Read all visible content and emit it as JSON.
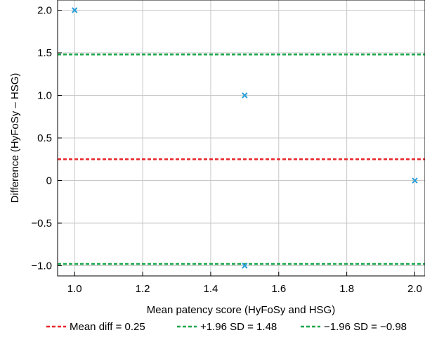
{
  "chart_data": {
    "type": "scatter",
    "xlabel": "Mean patency score (HyFoSy and HSG)",
    "ylabel": "Difference (HyFoSy – HSG)",
    "xlim": [
      0.95,
      2.03
    ],
    "ylim": [
      -1.12,
      2.12
    ],
    "x_ticks": [
      "1.0",
      "1.2",
      "1.4",
      "1.6",
      "1.8",
      "2.0"
    ],
    "y_ticks": [
      "2.0",
      "1.5",
      "1.0",
      "0.5",
      "0",
      "−0.5",
      "−1.0"
    ],
    "grid": true,
    "points": [
      {
        "x": 1.0,
        "y": 2.0
      },
      {
        "x": 1.5,
        "y": 1.0
      },
      {
        "x": 1.5,
        "y": -1.0
      },
      {
        "x": 2.0,
        "y": 0.0
      }
    ],
    "reference_lines": [
      {
        "value": 0.25,
        "color": "#e8262a",
        "label": "Mean diff = 0.25"
      },
      {
        "value": 1.48,
        "color": "#1aa64a",
        "label": "+1.96 SD = 1.48"
      },
      {
        "value": -0.98,
        "color": "#1aa64a",
        "label": "−1.96 SD = −0.98"
      }
    ],
    "legend_position": "bottom",
    "colors": {
      "marker": "#2b9fd9",
      "mean_line": "#e8262a",
      "sd_line": "#1aa64a"
    }
  }
}
